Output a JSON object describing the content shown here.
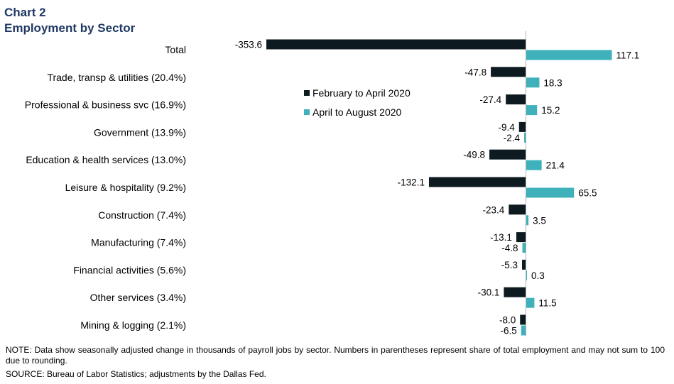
{
  "header": {
    "chart_number": "Chart 2",
    "title": "Employment by Sector"
  },
  "chart_data": {
    "type": "bar",
    "orientation": "horizontal",
    "categories": [
      "Total",
      "Trade, transp & utilities (20.4%)",
      "Professional & business svc (16.9%)",
      "Government (13.9%)",
      "Education & health services (13.0%)",
      "Leisure & hospitality (9.2%)",
      "Construction (7.4%)",
      "Manufacturing (7.4%)",
      "Financial activities (5.6%)",
      "Other services (3.4%)",
      "Mining & logging (2.1%)"
    ],
    "series": [
      {
        "name": "February to April 2020",
        "color": "#0d1b21",
        "values": [
          -353.6,
          -47.8,
          -27.4,
          -9.4,
          -49.8,
          -132.1,
          -23.4,
          -13.1,
          -5.3,
          -30.1,
          -8.0
        ],
        "labels": [
          "-353.6",
          "-47.8",
          "-27.4",
          "-9.4",
          "-49.8",
          "-132.1",
          "-23.4",
          "-13.1",
          "-5.3",
          "-30.1",
          "-8.0"
        ]
      },
      {
        "name": "April to August 2020",
        "color": "#3fb1bb",
        "values": [
          117.1,
          18.3,
          15.2,
          -2.4,
          21.4,
          65.5,
          3.5,
          -4.8,
          0.3,
          11.5,
          -6.5
        ],
        "labels": [
          "117.1",
          "18.3",
          "15.2",
          "-2.4",
          "21.4",
          "65.5",
          "3.5",
          "-4.8",
          "0.3",
          "11.5",
          "-6.5"
        ]
      }
    ],
    "legend_position": "upper-middle",
    "grid": false
  },
  "footer": {
    "note": "NOTE: Data show seasonally adjusted change in thousands of payroll jobs by sector. Numbers in parentheses represent share of total employment and may not sum to 100 due to rounding.",
    "source": "SOURCE: Bureau of Labor Statistics; adjustments by the Dallas Fed."
  }
}
